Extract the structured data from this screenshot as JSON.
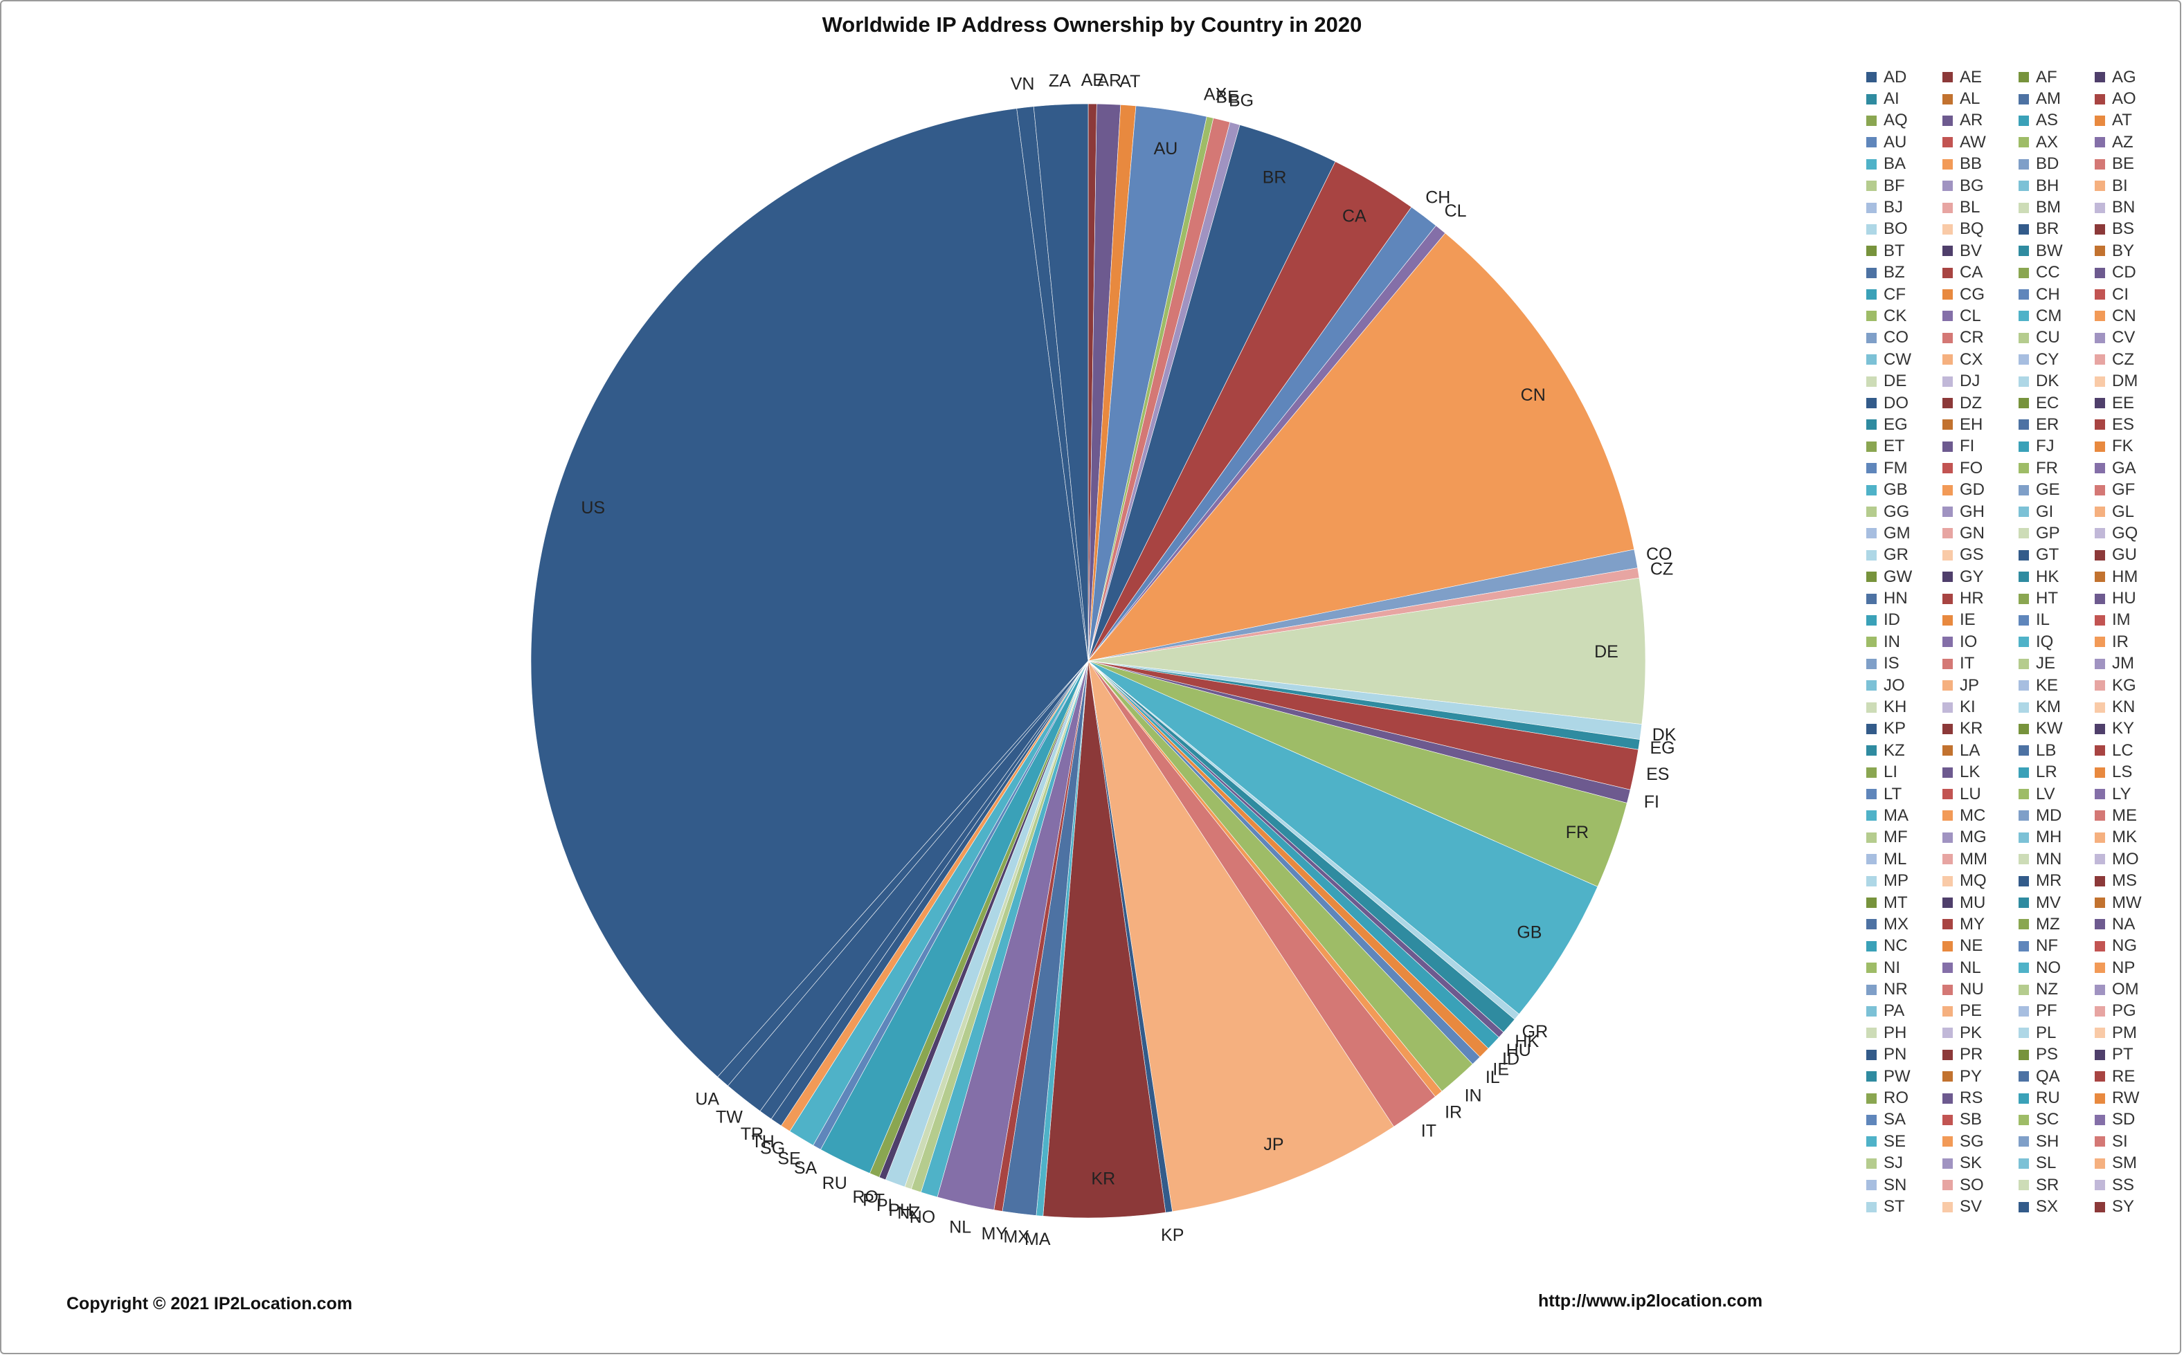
{
  "chart_data": {
    "type": "pie",
    "title": "Worldwide IP Address Ownership by Country in 2020",
    "legend_position": "right",
    "palette": [
      "#335b8a",
      "#8c3939",
      "#77933c",
      "#4f3f6b",
      "#2f8ba0",
      "#c2722f",
      "#4d72a3",
      "#a84442",
      "#8aa651",
      "#6d5a8f",
      "#3aa1b8",
      "#e8893f",
      "#5f86bb",
      "#c25452",
      "#9ebc67",
      "#846fa8",
      "#4fb2c8",
      "#f29a57",
      "#7f9fc8",
      "#d47875",
      "#b5cc8e",
      "#a093c1",
      "#7cc1d6",
      "#f5b07f",
      "#a7bee0",
      "#e7a5a2",
      "#cddcb7",
      "#c1b8d8",
      "#aed7e6",
      "#f9caa7"
    ],
    "legend": [
      "AD",
      "AE",
      "AF",
      "AG",
      "AI",
      "AL",
      "AM",
      "AO",
      "AQ",
      "AR",
      "AS",
      "AT",
      "AU",
      "AW",
      "AX",
      "AZ",
      "BA",
      "BB",
      "BD",
      "BE",
      "BF",
      "BG",
      "BH",
      "BI",
      "BJ",
      "BL",
      "BM",
      "BN",
      "BO",
      "BQ",
      "BR",
      "BS",
      "BT",
      "BV",
      "BW",
      "BY",
      "BZ",
      "CA",
      "CC",
      "CD",
      "CF",
      "CG",
      "CH",
      "CI",
      "CK",
      "CL",
      "CM",
      "CN",
      "CO",
      "CR",
      "CU",
      "CV",
      "CW",
      "CX",
      "CY",
      "CZ",
      "DE",
      "DJ",
      "DK",
      "DM",
      "DO",
      "DZ",
      "EC",
      "EE",
      "EG",
      "EH",
      "ER",
      "ES",
      "ET",
      "FI",
      "FJ",
      "FK",
      "FM",
      "FO",
      "FR",
      "GA",
      "GB",
      "GD",
      "GE",
      "GF",
      "GG",
      "GH",
      "GI",
      "GL",
      "GM",
      "GN",
      "GP",
      "GQ",
      "GR",
      "GS",
      "GT",
      "GU",
      "GW",
      "GY",
      "HK",
      "HM",
      "HN",
      "HR",
      "HT",
      "HU",
      "ID",
      "IE",
      "IL",
      "IM",
      "IN",
      "IO",
      "IQ",
      "IR",
      "IS",
      "IT",
      "JE",
      "JM",
      "JO",
      "JP",
      "KE",
      "KG",
      "KH",
      "KI",
      "KM",
      "KN",
      "KP",
      "KR",
      "KW",
      "KY",
      "KZ",
      "LA",
      "LB",
      "LC",
      "LI",
      "LK",
      "LR",
      "LS",
      "LT",
      "LU",
      "LV",
      "LY",
      "MA",
      "MC",
      "MD",
      "ME",
      "MF",
      "MG",
      "MH",
      "MK",
      "ML",
      "MM",
      "MN",
      "MO",
      "MP",
      "MQ",
      "MR",
      "MS",
      "MT",
      "MU",
      "MV",
      "MW",
      "MX",
      "MY",
      "MZ",
      "NA",
      "NC",
      "NE",
      "NF",
      "NG",
      "NI",
      "NL",
      "NO",
      "NP",
      "NR",
      "NU",
      "NZ",
      "OM",
      "PA",
      "PE",
      "PF",
      "PG",
      "PH",
      "PK",
      "PL",
      "PM",
      "PN",
      "PR",
      "PS",
      "PT",
      "PW",
      "PY",
      "QA",
      "RE",
      "RO",
      "RS",
      "RU",
      "RW",
      "SA",
      "SB",
      "SC",
      "SD",
      "SE",
      "SG",
      "SH",
      "SI",
      "SJ",
      "SK",
      "SL",
      "SM",
      "SN",
      "SO",
      "SR",
      "SS",
      "ST",
      "SV",
      "SX",
      "SY"
    ],
    "slices": [
      {
        "label": "AE",
        "value": 0.25
      },
      {
        "label": "AR",
        "value": 0.7
      },
      {
        "label": "AT",
        "value": 0.45
      },
      {
        "label": "AU",
        "value": 2.1
      },
      {
        "label": "AX",
        "value": 0.2
      },
      {
        "label": "BE",
        "value": 0.5
      },
      {
        "label": "BG",
        "value": 0.3
      },
      {
        "label": "BR",
        "value": 3.0
      },
      {
        "label": "CA",
        "value": 2.6
      },
      {
        "label": "CH",
        "value": 0.9
      },
      {
        "label": "CL",
        "value": 0.35
      },
      {
        "label": "CN",
        "value": 11.0
      },
      {
        "label": "CO",
        "value": 0.55
      },
      {
        "label": "CZ",
        "value": 0.3
      },
      {
        "label": "DE",
        "value": 4.3
      },
      {
        "label": "DK",
        "value": 0.45
      },
      {
        "label": "EG",
        "value": 0.3
      },
      {
        "label": "ES",
        "value": 1.2
      },
      {
        "label": "FI",
        "value": 0.4
      },
      {
        "label": "FR",
        "value": 2.6
      },
      {
        "label": "GB",
        "value": 4.4
      },
      {
        "label": "GR",
        "value": 0.2
      },
      {
        "label": "HK",
        "value": 0.5
      },
      {
        "label": "HU",
        "value": 0.2
      },
      {
        "label": "ID",
        "value": 0.45
      },
      {
        "label": "IE",
        "value": 0.35
      },
      {
        "label": "IL",
        "value": 0.3
      },
      {
        "label": "IN",
        "value": 1.2
      },
      {
        "label": "IR",
        "value": 0.25
      },
      {
        "label": "IT",
        "value": 1.5
      },
      {
        "label": "JP",
        "value": 7.0
      },
      {
        "label": "KP",
        "value": 0.2
      },
      {
        "label": "KR",
        "value": 3.6
      },
      {
        "label": "MA",
        "value": 0.2
      },
      {
        "label": "MX",
        "value": 1.0
      },
      {
        "label": "MY",
        "value": 0.25
      },
      {
        "label": "NL",
        "value": 1.7
      },
      {
        "label": "NO",
        "value": 0.5
      },
      {
        "label": "NZ",
        "value": 0.3
      },
      {
        "label": "PH",
        "value": 0.2
      },
      {
        "label": "PL",
        "value": 0.6
      },
      {
        "label": "PT",
        "value": 0.2
      },
      {
        "label": "RO",
        "value": 0.3
      },
      {
        "label": "RU",
        "value": 1.6
      },
      {
        "label": "SA",
        "value": 0.25
      },
      {
        "label": "SE",
        "value": 0.8
      },
      {
        "label": "SG",
        "value": 0.3
      },
      {
        "label": "TH",
        "value": 0.35
      },
      {
        "label": "TR",
        "value": 0.4
      },
      {
        "label": "TW",
        "value": 1.2
      },
      {
        "label": "UA",
        "value": 0.4
      },
      {
        "label": "US",
        "value": 37.3
      },
      {
        "label": "VN",
        "value": 0.5
      },
      {
        "label": "ZA",
        "value": 1.6
      }
    ]
  },
  "footer": {
    "copyright": "Copyright © 2021 IP2Location.com",
    "url": "http://www.ip2location.com"
  }
}
